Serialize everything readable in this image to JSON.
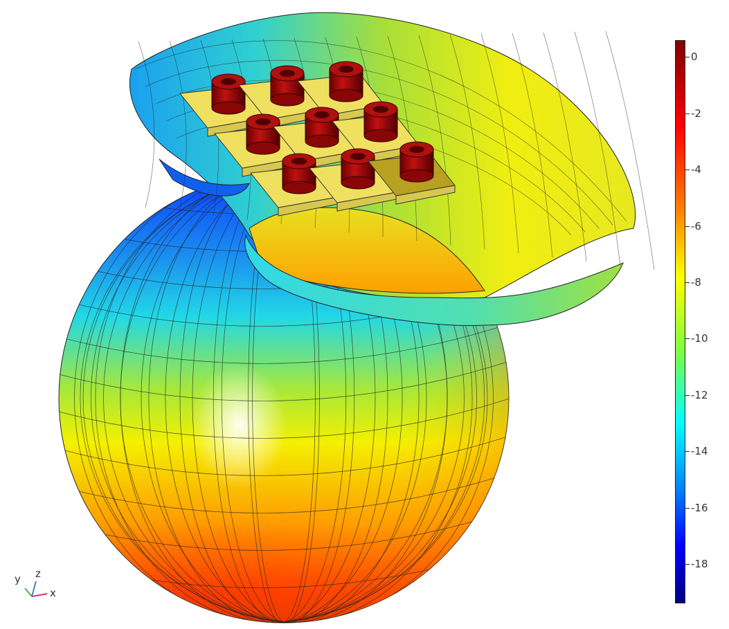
{
  "chart_data": {
    "type": "3d-surface",
    "colormap": "rainbow",
    "colorbar": {
      "range": [
        -19.4,
        0.6
      ],
      "ticks": [
        0,
        -2,
        -4,
        -6,
        -8,
        -10,
        -12,
        -14,
        -16,
        -18
      ],
      "tick_labels": [
        "0",
        "-2",
        "-4",
        "-6",
        "-8",
        "-10",
        "-12",
        "-14",
        "-16",
        "-18"
      ],
      "position": "right"
    },
    "axes_triad": {
      "labels": [
        "y",
        "z",
        "x"
      ],
      "colors": {
        "x": "#d6336c",
        "y": "#4caf50",
        "z": "#4a7fb5"
      }
    }
  }
}
